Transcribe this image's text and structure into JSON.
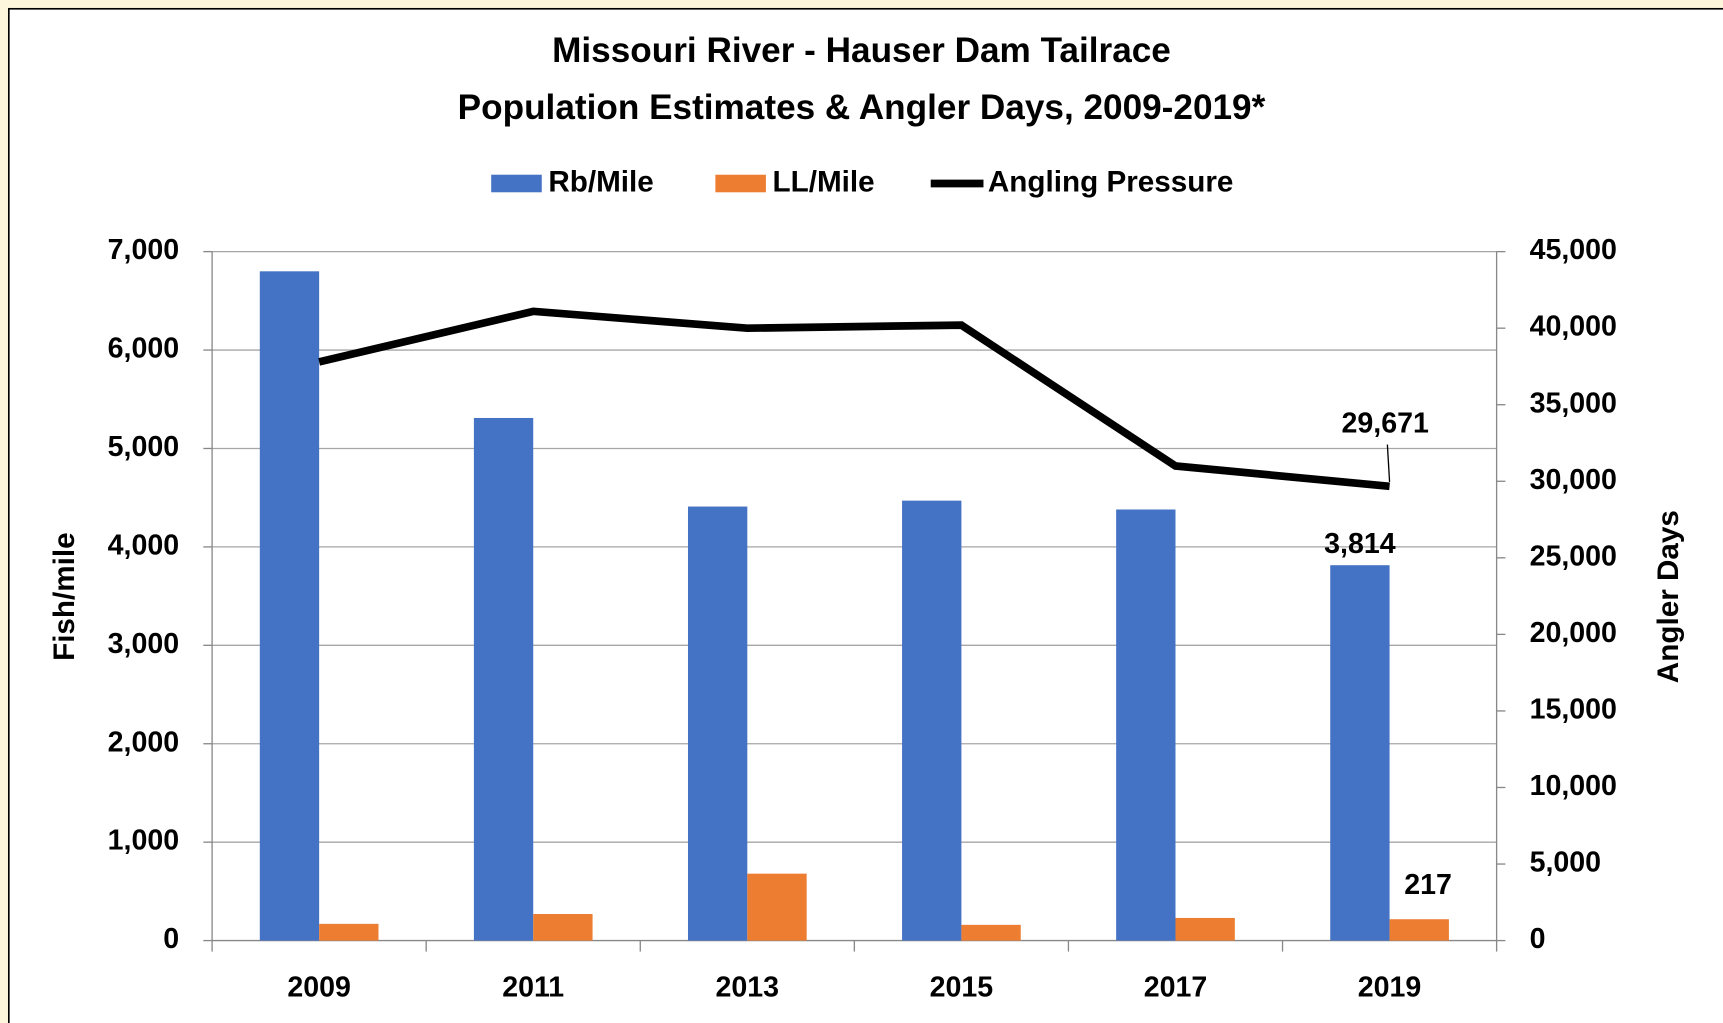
{
  "chart_data": {
    "type": "bar",
    "title": [
      "Missouri River - Hauser Dam Tailrace",
      "Population Estimates & Angler Days, 2009-2019*"
    ],
    "categories": [
      "2009",
      "2011",
      "2013",
      "2015",
      "2017",
      "2019"
    ],
    "series": [
      {
        "name": "Rb/Mile",
        "color": "#4472c4",
        "type": "bar",
        "values": [
          6800,
          5310,
          4410,
          4470,
          4380,
          3814
        ],
        "value_labels": [
          null,
          null,
          null,
          null,
          null,
          "3,814"
        ]
      },
      {
        "name": "LL/Mile",
        "color": "#ed7d31",
        "type": "bar",
        "values": [
          170,
          270,
          680,
          160,
          230,
          217
        ],
        "value_labels": [
          null,
          null,
          null,
          null,
          null,
          "217"
        ]
      },
      {
        "name": "Angling Pressure",
        "color": "#000000",
        "type": "line",
        "axis": "y2",
        "values": [
          37800,
          41100,
          40000,
          40200,
          31000,
          29671
        ],
        "value_labels": [
          null,
          null,
          null,
          null,
          null,
          "29,671"
        ]
      }
    ],
    "ylabel": "Fish/mile",
    "y2label": "Angler Days",
    "ylim": [
      0,
      7000
    ],
    "yticks": [
      0,
      {
        "value": 1000,
        "label": "1,000"
      },
      {
        "value": 2000,
        "label": "2,000"
      },
      {
        "value": 3000,
        "label": "3,000"
      },
      {
        "value": 4000,
        "label": "4,000"
      },
      {
        "value": 5000,
        "label": "5,000"
      },
      {
        "value": 6000,
        "label": "6,000"
      },
      {
        "value": 7000,
        "label": "7,000"
      }
    ],
    "y2lim": [
      0,
      45000
    ],
    "y2ticks": [
      0,
      {
        "value": 5000,
        "label": "5,000"
      },
      {
        "value": 10000,
        "label": "10,000"
      },
      {
        "value": 15000,
        "label": "15,000"
      },
      {
        "value": 20000,
        "label": "20,000"
      },
      {
        "value": 25000,
        "label": "25,000"
      },
      {
        "value": 30000,
        "label": "30,000"
      },
      {
        "value": 35000,
        "label": "35,000"
      },
      {
        "value": 40000,
        "label": "40,000"
      },
      {
        "value": 45000,
        "label": "45,000"
      }
    ],
    "grid": true,
    "legend": "top"
  }
}
